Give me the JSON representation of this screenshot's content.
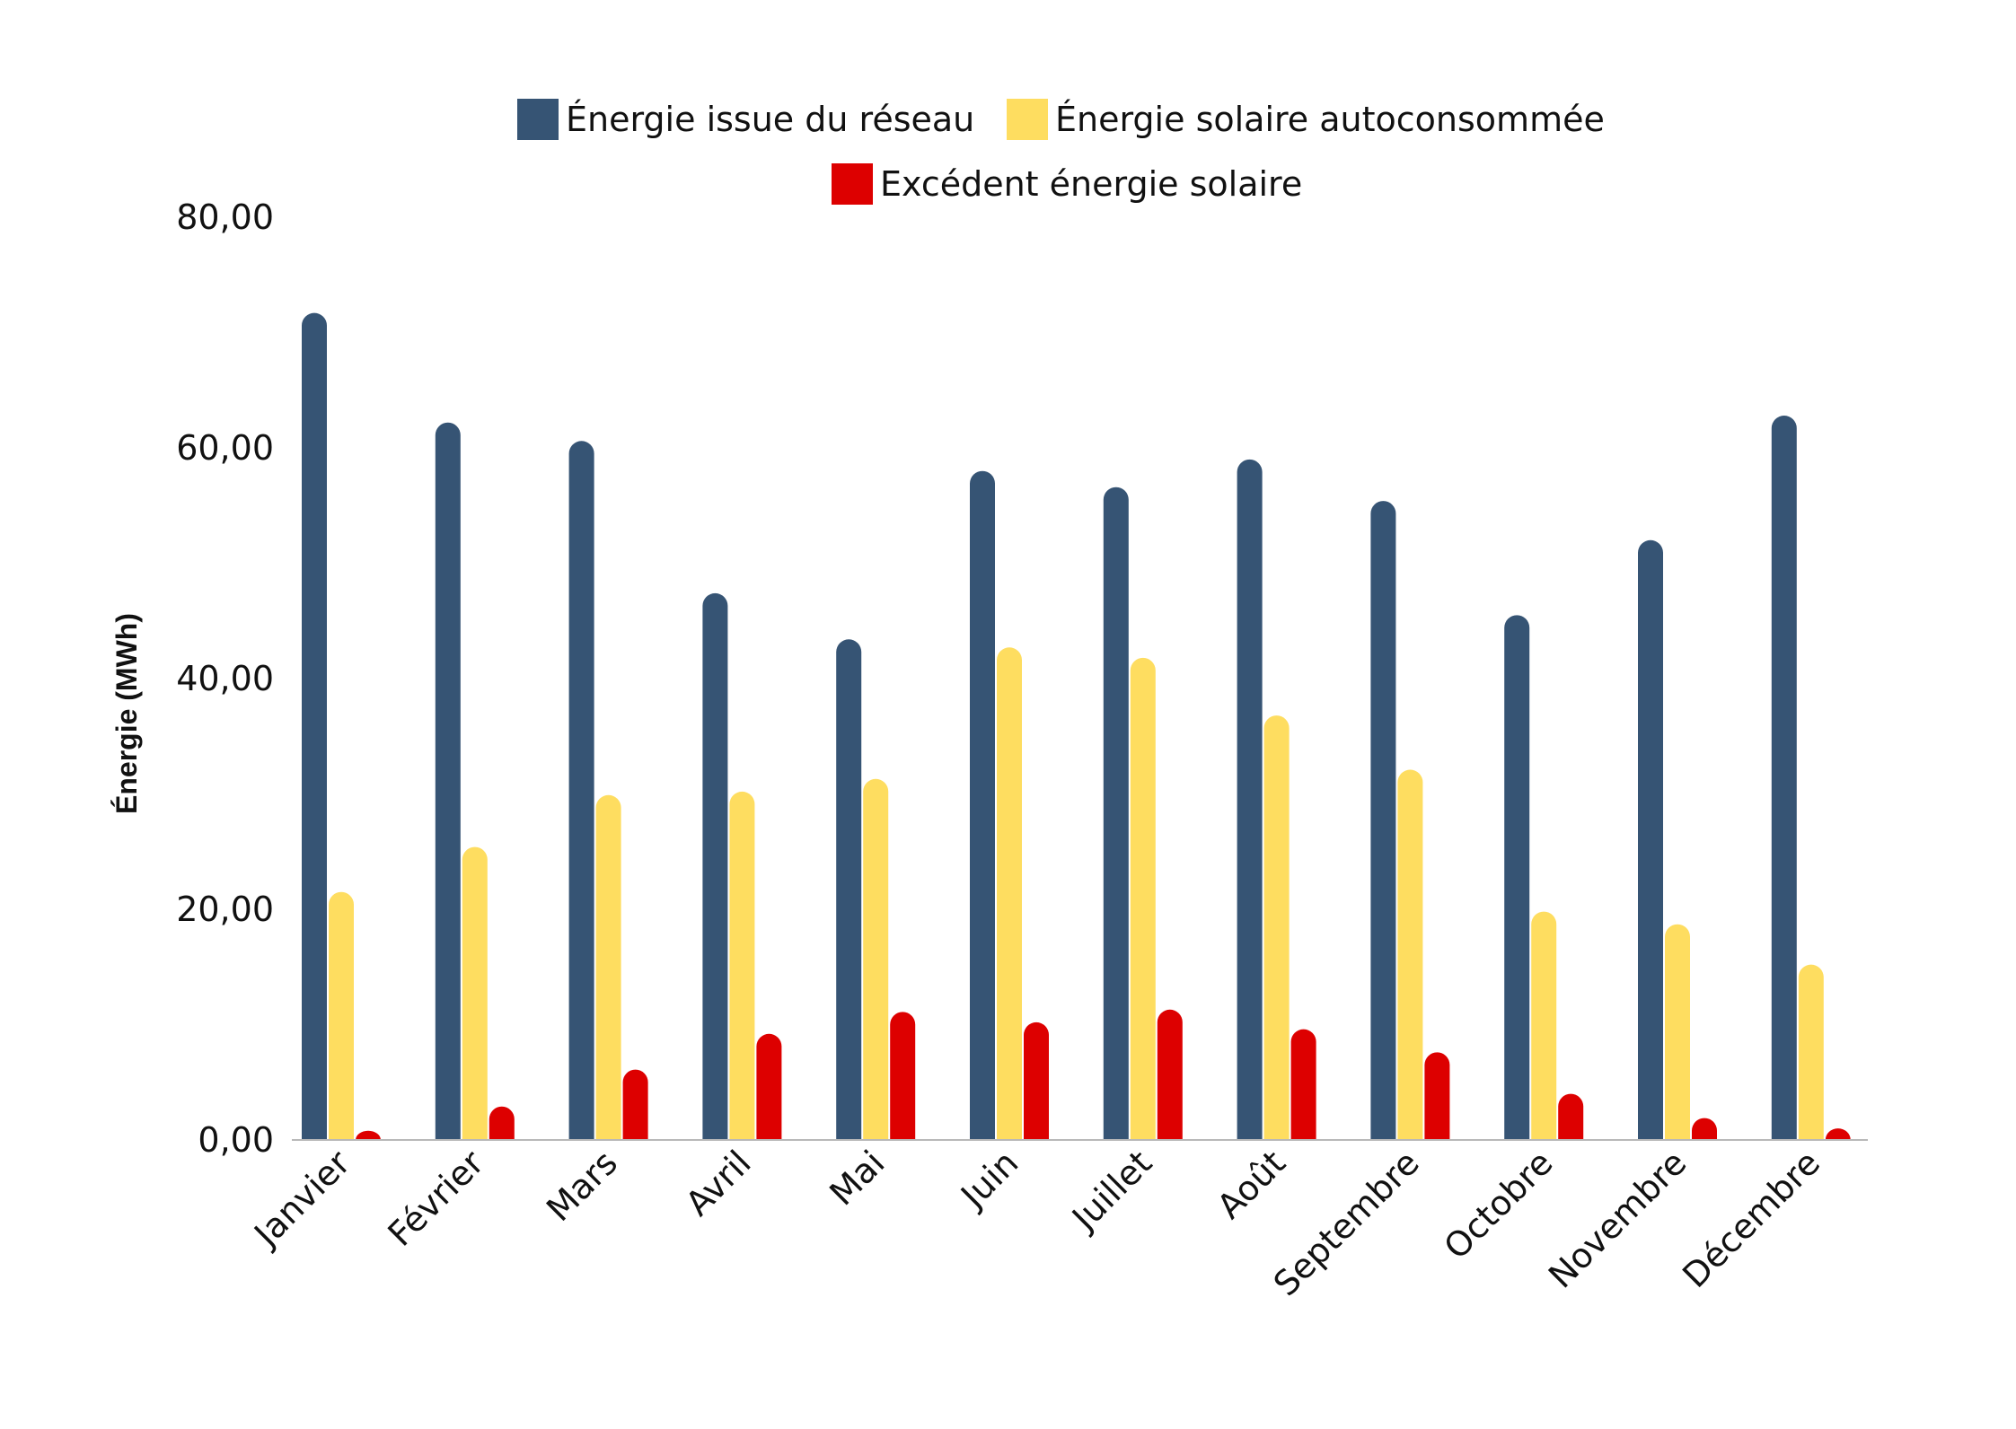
{
  "chart_data": {
    "type": "bar",
    "title": "",
    "xlabel": "",
    "ylabel": "Énergie (MWh)",
    "ylim": [
      0,
      80
    ],
    "yticks": [
      0,
      20,
      40,
      60,
      80
    ],
    "ytick_labels": [
      "0,00",
      "20,00",
      "40,00",
      "60,00",
      "80,00"
    ],
    "grid": false,
    "legend_position": "top-center",
    "categories": [
      "Janvier",
      "Février",
      "Mars",
      "Avril",
      "Mai",
      "Juin",
      "Juillet",
      "Août",
      "Septembre",
      "Octobre",
      "Novembre",
      "Décembre"
    ],
    "series": [
      {
        "name": "Énergie issue du réseau",
        "color": "#365474",
        "values": [
          71.7,
          62.2,
          60.6,
          47.4,
          43.4,
          58.0,
          56.6,
          59.0,
          55.4,
          45.5,
          52.0,
          62.8
        ]
      },
      {
        "name": "Énergie solaire autoconsommée",
        "color": "#FEDD60",
        "values": [
          21.5,
          25.4,
          29.9,
          30.2,
          31.3,
          42.7,
          41.8,
          36.8,
          32.1,
          19.8,
          18.7,
          15.2
        ]
      },
      {
        "name": "Excédent énergie solaire",
        "color": "#DD0000",
        "values": [
          0.8,
          2.9,
          6.1,
          9.2,
          11.1,
          10.2,
          11.3,
          9.6,
          7.6,
          4.0,
          1.9,
          1.0
        ]
      }
    ]
  }
}
